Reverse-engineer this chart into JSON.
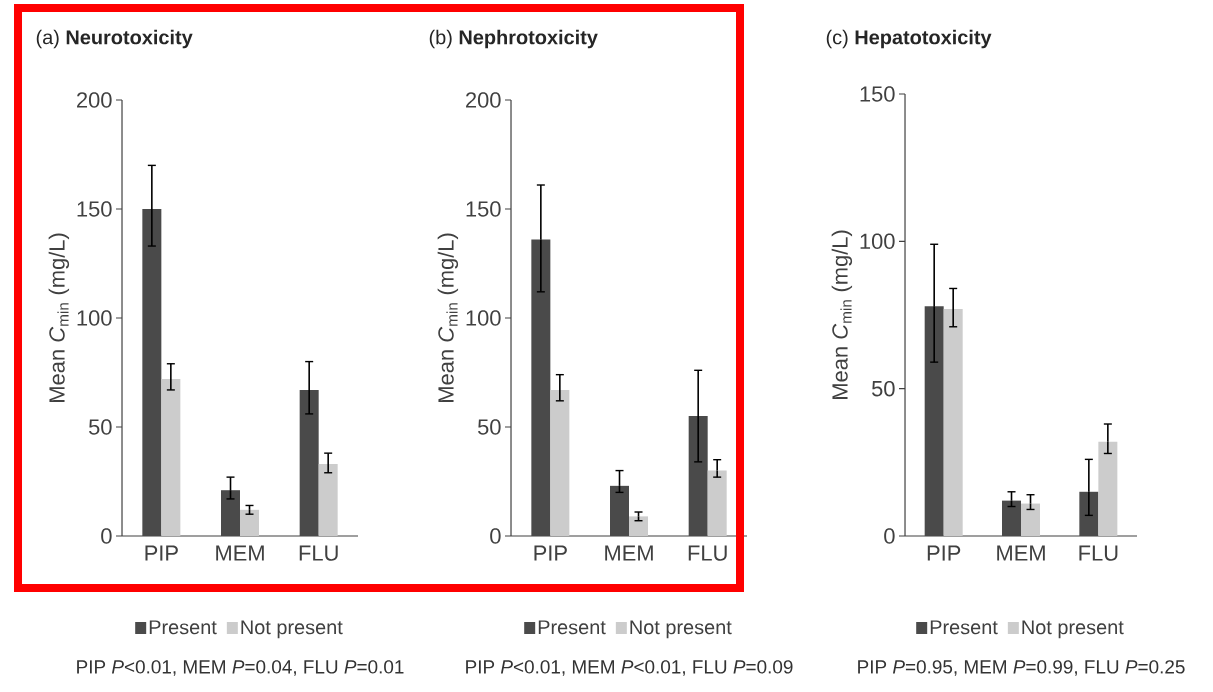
{
  "chart_data": [
    {
      "type": "bar",
      "title": "(a) **Neurotoxicity**",
      "ylabel": "Mean *C*$_{min}$ (mg/L)",
      "categories": [
        "PIP",
        "MEM",
        "FLU"
      ],
      "series": [
        {
          "name": "Present",
          "color": "#4a4a4a",
          "values": [
            150,
            21,
            67
          ],
          "errors": [
            [
              133,
              170
            ],
            [
              17,
              27
            ],
            [
              56,
              80
            ]
          ]
        },
        {
          "name": "Not present",
          "color": "#cccccc",
          "values": [
            72,
            12,
            33
          ],
          "errors": [
            [
              67,
              79
            ],
            [
              10,
              14
            ],
            [
              29,
              38
            ]
          ]
        }
      ],
      "ylim": [
        0,
        200
      ],
      "yticks": [
        0,
        50,
        100,
        150,
        200
      ],
      "legend": "bottom",
      "annotations": [
        "PIP *P*<0.01, MEM *P*=0.04, FLU *P*=0.01"
      ]
    },
    {
      "type": "bar",
      "title": "(b) **Nephrotoxicity**",
      "ylabel": "Mean *C*$_{min}$ (mg/L)",
      "categories": [
        "PIP",
        "MEM",
        "FLU"
      ],
      "series": [
        {
          "name": "Present",
          "color": "#4a4a4a",
          "values": [
            136,
            23,
            55
          ],
          "errors": [
            [
              112,
              161
            ],
            [
              20,
              30
            ],
            [
              34,
              76
            ]
          ]
        },
        {
          "name": "Not present",
          "color": "#cccccc",
          "values": [
            67,
            9,
            30
          ],
          "errors": [
            [
              62,
              74
            ],
            [
              7,
              11
            ],
            [
              27,
              35
            ]
          ]
        }
      ],
      "ylim": [
        0,
        200
      ],
      "yticks": [
        0,
        50,
        100,
        150,
        200
      ],
      "legend": "bottom",
      "annotations": [
        "PIP *P*<0.01, MEM *P*<0.01, FLU *P*=0.09"
      ]
    },
    {
      "type": "bar",
      "title": "(c) **Hepatotoxicity**",
      "ylabel": "Mean *C*$_{min}$ (mg/L)",
      "categories": [
        "PIP",
        "MEM",
        "FLU"
      ],
      "series": [
        {
          "name": "Present",
          "color": "#4a4a4a",
          "values": [
            78,
            12,
            15
          ],
          "errors": [
            [
              59,
              99
            ],
            [
              10,
              15
            ],
            [
              7,
              26
            ]
          ]
        },
        {
          "name": "Not present",
          "color": "#cccccc",
          "values": [
            77,
            11,
            32
          ],
          "errors": [
            [
              71,
              84
            ],
            [
              9,
              14
            ],
            [
              28,
              38
            ]
          ]
        }
      ],
      "ylim": [
        0,
        150
      ],
      "yticks": [
        0,
        50,
        100,
        150
      ],
      "legend": "bottom",
      "annotations": [
        "PIP *P*=0.95, MEM *P*=0.99, FLU *P*=0.25"
      ]
    }
  ]
}
